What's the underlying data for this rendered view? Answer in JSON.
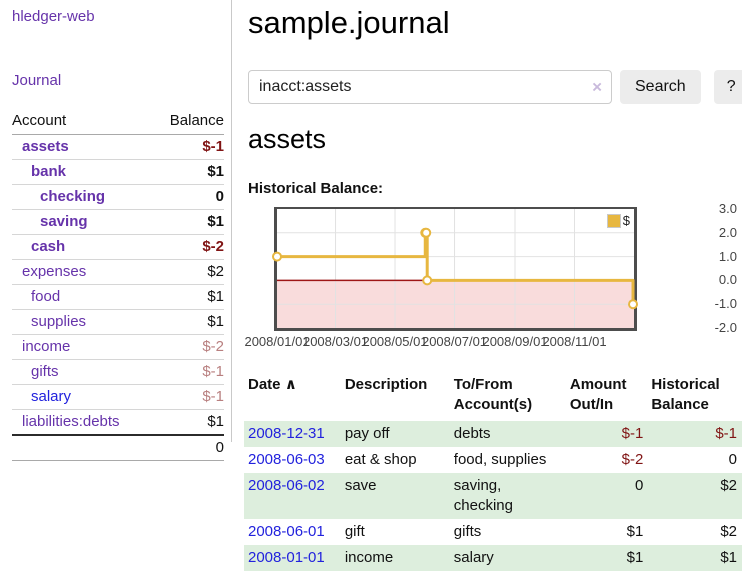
{
  "app": {
    "title": "hledger-web"
  },
  "sidebar": {
    "journal_label": "Journal",
    "accounts_table": {
      "header_account": "Account",
      "header_balance": "Balance",
      "rows": [
        {
          "name": "assets",
          "indent": 1,
          "bold": true,
          "balance": "$-1"
        },
        {
          "name": "bank",
          "indent": 2,
          "bold": true,
          "balance": "$1"
        },
        {
          "name": "checking",
          "indent": 3,
          "bold": true,
          "balance": "0"
        },
        {
          "name": "saving",
          "indent": 3,
          "bold": true,
          "balance": "$1"
        },
        {
          "name": "cash",
          "indent": 2,
          "bold": true,
          "balance": "$-2"
        },
        {
          "name": "expenses",
          "indent": 1,
          "bold": false,
          "balance": "$2"
        },
        {
          "name": "food",
          "indent": 2,
          "bold": false,
          "balance": "$1"
        },
        {
          "name": "supplies",
          "indent": 2,
          "bold": false,
          "balance": "$1"
        },
        {
          "name": "income",
          "indent": 1,
          "bold": false,
          "balance": "$-2"
        },
        {
          "name": "gifts",
          "indent": 2,
          "bold": false,
          "balance": "$-1"
        },
        {
          "name": "salary",
          "indent": 2,
          "bold": false,
          "balance": "$-1",
          "link_color": "blue"
        },
        {
          "name": "liabilities:debts",
          "indent": 1,
          "bold": false,
          "balance": "$1"
        }
      ],
      "total": "0"
    }
  },
  "header": {
    "title": "sample.journal"
  },
  "search": {
    "value": "inacct:assets",
    "clear_icon": "×",
    "button_label": "Search",
    "help_label": "?"
  },
  "account_page": {
    "title": "assets",
    "chart_label": "Historical Balance:"
  },
  "chart_data": {
    "type": "line",
    "step": true,
    "title": "Historical Balance:",
    "series": [
      {
        "name": "$",
        "color": "#e7b740",
        "points": [
          [
            "2008-01-01",
            1
          ],
          [
            "2008-06-01",
            2
          ],
          [
            "2008-06-02",
            2
          ],
          [
            "2008-06-03",
            0
          ],
          [
            "2008-12-31",
            -1
          ]
        ]
      }
    ],
    "x_range": [
      "2008-01-01",
      "2009-01-01"
    ],
    "ylim": [
      -2,
      3
    ],
    "x_ticks": [
      "2008/01/01",
      "2008/03/01",
      "2008/05/01",
      "2008/07/01",
      "2008/09/01",
      "2008/11/01"
    ],
    "y_ticks": [
      "3.0",
      "2.0",
      "1.0",
      "0.0",
      "-1.0",
      "-2.0"
    ],
    "legend": {
      "label": "$",
      "position": "top-right"
    },
    "grid": true,
    "negative_region_color": "#f9dcdc",
    "zero_line_color": "#9e1616"
  },
  "register_table": {
    "headers": {
      "date": "Date",
      "sort_icon": "∧",
      "description": "Description",
      "accounts": "To/From Account(s)",
      "amount": "Amount Out/In",
      "balance": "Historical Balance"
    },
    "rows": [
      {
        "date": "2008-12-31",
        "description": "pay off",
        "accounts": "debts",
        "amount": "$-1",
        "balance": "$-1"
      },
      {
        "date": "2008-06-03",
        "description": "eat & shop",
        "accounts": "food, supplies",
        "amount": "$-2",
        "balance": "0"
      },
      {
        "date": "2008-06-02",
        "description": "save",
        "accounts": "saving, checking",
        "amount": "0",
        "balance": "$2"
      },
      {
        "date": "2008-06-01",
        "description": "gift",
        "accounts": "gifts",
        "amount": "$1",
        "balance": "$2"
      },
      {
        "date": "2008-01-01",
        "description": "income",
        "accounts": "salary",
        "amount": "$1",
        "balance": "$1"
      }
    ]
  },
  "colors": {
    "link_purple": "#6633aa",
    "link_blue": "#2222dd",
    "negative_strong": "#801414",
    "negative_soft": "#b87f7f",
    "row_stripe_green": "#ddeedd",
    "chart_line_gold": "#e7b740",
    "chart_negative_pink": "#f9dcdc",
    "chart_zero_line": "#9e1616"
  }
}
